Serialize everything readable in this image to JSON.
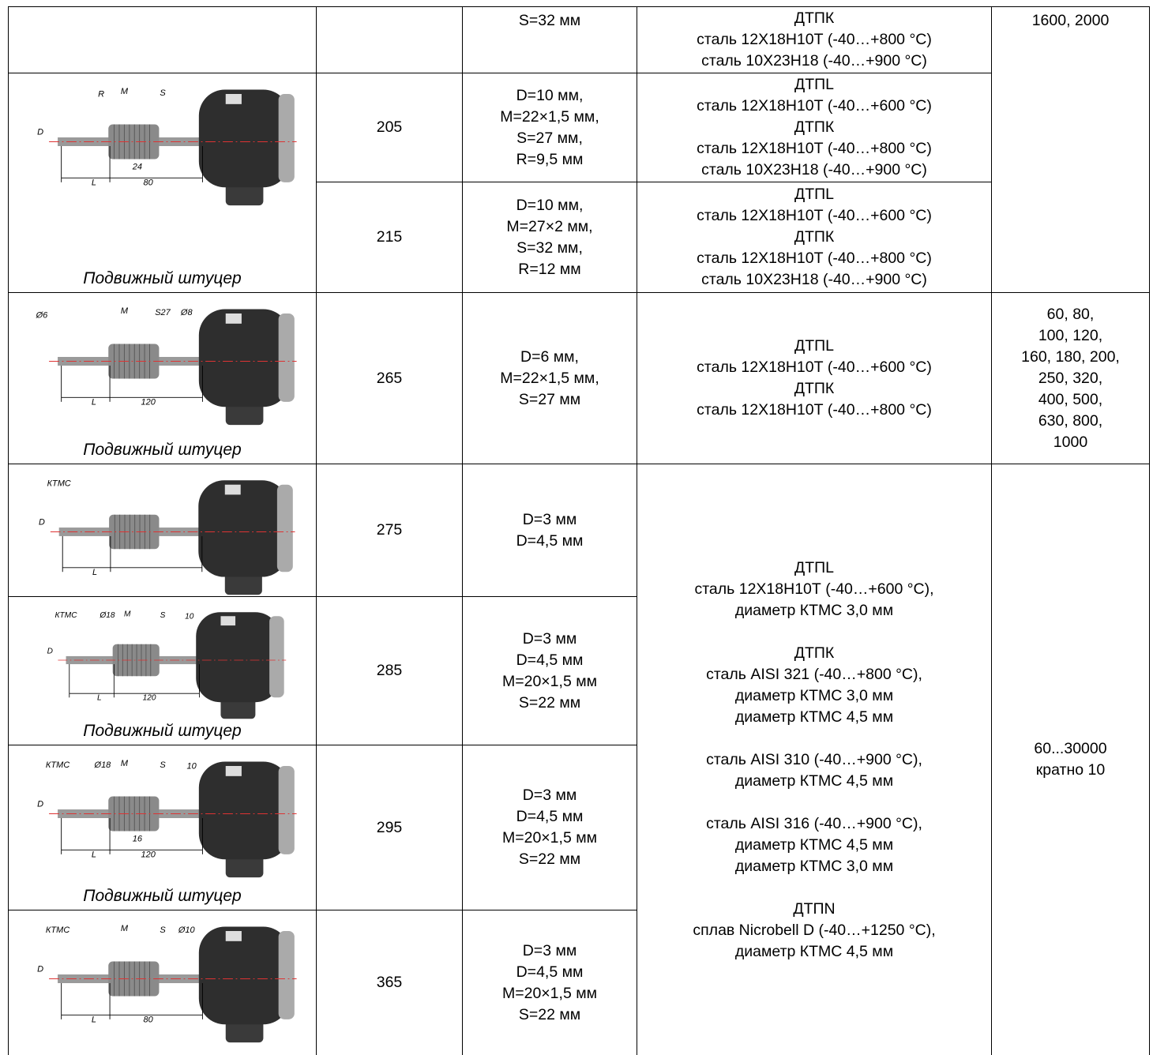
{
  "table": {
    "rows": [
      {
        "dimensions": [
          "S=32 мм"
        ],
        "sensor": [
          [
            "ДТПК",
            "сталь 12Х18Н10Т (-40…+800 °C)",
            "сталь 10Х23Н18 (-40…+900 °C)"
          ]
        ],
        "lengths": [
          "1600, 2000"
        ]
      },
      {
        "drawing": {
          "labels": [
            "R",
            "M",
            "S",
            "D",
            "24",
            "L",
            "80"
          ]
        },
        "caption": "Подвижный штуцер",
        "code": "205",
        "dimensions": [
          "D=10 мм,",
          "M=22×1,5 мм,",
          "S=27 мм,",
          "R=9,5 мм"
        ],
        "sensor": [
          [
            "ДТПL",
            "сталь 12Х18Н10Т (-40…+600 °C)",
            "ДТПК",
            "сталь 12Х18Н10Т (-40…+800 °C)",
            "сталь 10Х23Н18 (-40…+900 °C)"
          ]
        ]
      },
      {
        "code": "215",
        "dimensions": [
          "D=10 мм,",
          "M=27×2 мм,",
          "S=32 мм,",
          "R=12 мм"
        ],
        "sensor": [
          [
            "ДТПL",
            "сталь 12Х18Н10Т (-40…+600 °C)",
            "ДТПК",
            "сталь 12Х18Н10Т (-40…+800 °C)",
            "сталь 10Х23Н18 (-40…+900 °C)"
          ]
        ]
      },
      {
        "drawing": {
          "labels": [
            "Ø6",
            "M",
            "S27",
            "Ø8",
            "L",
            "120"
          ]
        },
        "caption": "Подвижный штуцер",
        "code": "265",
        "dimensions": [
          "D=6 мм,",
          "M=22×1,5 мм,",
          "S=27 мм"
        ],
        "sensor": [
          [
            "ДТПL",
            "сталь 12Х18Н10Т (-40…+600 °C)",
            "ДТПК",
            "сталь 12Х18Н10Т (-40…+800 °C)"
          ]
        ],
        "lengths": [
          "60, 80,",
          "100, 120,",
          "160, 180, 200,",
          "250, 320,",
          "400, 500,",
          "630, 800,",
          "1000"
        ]
      },
      {
        "drawing": {
          "labels": [
            "КТМС",
            "D",
            "L"
          ]
        },
        "code": "275",
        "dimensions": [
          "D=3 мм",
          "D=4,5 мм"
        ],
        "sensor": [
          [
            "ДТПL",
            "сталь 12Х18Н10Т (-40…+600 °C),",
            "диаметр КТМС 3,0 мм"
          ],
          [
            "ДТПК",
            "сталь AISI 321 (-40…+800 °C),",
            "диаметр КТМС 3,0 мм",
            "диаметр КТМС 4,5 мм"
          ],
          [
            "сталь AISI 310 (-40…+900 °C),",
            "диаметр КТМС 4,5 мм"
          ],
          [
            "сталь AISI 316 (-40…+900 °C),",
            "диаметр КТМС 4,5 мм",
            "диаметр КТМС 3,0 мм"
          ],
          [
            "ДТПN",
            "сплав Nicrobell D (-40…+1250 °C),",
            "диаметр КТМС 4,5 мм"
          ]
        ],
        "lengths": [
          "60...30000",
          "кратно 10"
        ]
      },
      {
        "drawing": {
          "labels": [
            "КТМС",
            "Ø18",
            "M",
            "S",
            "10",
            "D",
            "L",
            "120"
          ]
        },
        "caption": "Подвижный штуцер",
        "code": "285",
        "dimensions": [
          "D=3 мм",
          "D=4,5 мм",
          "M=20×1,5 мм",
          "S=22 мм"
        ]
      },
      {
        "drawing": {
          "labels": [
            "КТМС",
            "Ø18",
            "M",
            "S",
            "10",
            "D",
            "16",
            "L",
            "120"
          ]
        },
        "caption": "Подвижный штуцер",
        "code": "295",
        "dimensions": [
          "D=3 мм",
          "D=4,5 мм",
          "M=20×1,5 мм",
          "S=22 мм"
        ]
      },
      {
        "drawing": {
          "labels": [
            "КТМС",
            "M",
            "S",
            "Ø10",
            "D",
            "L",
            "80"
          ]
        },
        "code": "365",
        "dimensions": [
          "D=3 мм",
          "D=4,5 мм",
          "M=20×1,5 мм",
          "S=22 мм"
        ]
      }
    ]
  }
}
